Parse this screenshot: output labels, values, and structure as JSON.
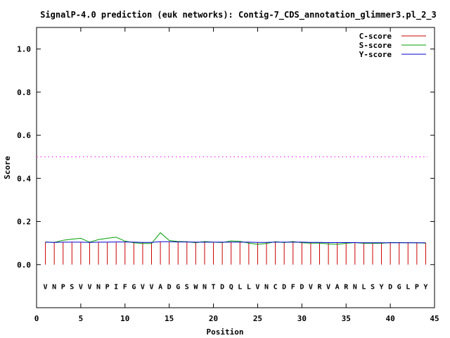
{
  "chart_data": {
    "type": "line",
    "title": "SignalP-4.0 prediction (euk networks): Contig-7_CDS_annotation_glimmer3.pl_2_3",
    "xlabel": "Position",
    "ylabel": "Score",
    "xlim": [
      0,
      45
    ],
    "ylim": [
      -0.2,
      1.1
    ],
    "x_ticks": [
      0,
      5,
      10,
      15,
      20,
      25,
      30,
      35,
      40,
      45
    ],
    "y_ticks": [
      0.0,
      0.2,
      0.4,
      0.6,
      0.8,
      1.0
    ],
    "y_tick_labels": [
      "0.0",
      "0.2",
      "0.4",
      "0.6",
      "0.8",
      "1.0"
    ],
    "threshold": 0.5,
    "sequence": [
      "V",
      "N",
      "P",
      "S",
      "V",
      "V",
      "N",
      "P",
      "I",
      "F",
      "G",
      "V",
      "V",
      "A",
      "D",
      "G",
      "S",
      "W",
      "N",
      "T",
      "D",
      "Q",
      "L",
      "L",
      "V",
      "N",
      "C",
      "D",
      "F",
      "D",
      "V",
      "R",
      "V",
      "A",
      "R",
      "N",
      "L",
      "S",
      "Y",
      "D",
      "G",
      "L",
      "P",
      "Y"
    ],
    "legend": [
      "C-score",
      "S-score",
      "Y-score"
    ],
    "legend_position": "top-right",
    "grid": false,
    "series": [
      {
        "name": "C-score",
        "color": "#cc0000",
        "style": "impulses",
        "x": [
          1,
          2,
          3,
          4,
          5,
          6,
          7,
          8,
          9,
          10,
          11,
          12,
          13,
          14,
          15,
          16,
          17,
          18,
          19,
          20,
          21,
          22,
          23,
          24,
          25,
          26,
          27,
          28,
          29,
          30,
          31,
          32,
          33,
          34,
          35,
          36,
          37,
          38,
          39,
          40,
          41,
          42,
          43,
          44
        ],
        "values": [
          0.104,
          0.103,
          0.103,
          0.103,
          0.103,
          0.103,
          0.103,
          0.103,
          0.103,
          0.104,
          0.104,
          0.103,
          0.104,
          0.105,
          0.105,
          0.104,
          0.104,
          0.104,
          0.104,
          0.104,
          0.104,
          0.104,
          0.104,
          0.104,
          0.104,
          0.104,
          0.104,
          0.104,
          0.104,
          0.104,
          0.103,
          0.103,
          0.103,
          0.102,
          0.102,
          0.102,
          0.101,
          0.101,
          0.101,
          0.101,
          0.101,
          0.101,
          0.101,
          0.101
        ]
      },
      {
        "name": "S-score",
        "color": "#00a000",
        "style": "line",
        "x": [
          1,
          2,
          3,
          4,
          5,
          6,
          7,
          8,
          9,
          10,
          11,
          12,
          13,
          14,
          15,
          16,
          17,
          18,
          19,
          20,
          21,
          22,
          23,
          24,
          25,
          26,
          27,
          28,
          29,
          30,
          31,
          32,
          33,
          34,
          35,
          36,
          37,
          38,
          39,
          40,
          41,
          42,
          43,
          44
        ],
        "values": [
          0.105,
          0.103,
          0.113,
          0.118,
          0.122,
          0.104,
          0.116,
          0.122,
          0.127,
          0.109,
          0.101,
          0.098,
          0.098,
          0.148,
          0.112,
          0.107,
          0.106,
          0.101,
          0.107,
          0.104,
          0.102,
          0.11,
          0.108,
          0.1,
          0.094,
          0.098,
          0.106,
          0.102,
          0.107,
          0.101,
          0.1,
          0.1,
          0.096,
          0.094,
          0.099,
          0.102,
          0.099,
          0.099,
          0.099,
          0.102,
          0.102,
          0.101,
          0.101,
          0.1
        ]
      },
      {
        "name": "Y-score",
        "color": "#0000cc",
        "style": "line",
        "x": [
          1,
          2,
          3,
          4,
          5,
          6,
          7,
          8,
          9,
          10,
          11,
          12,
          13,
          14,
          15,
          16,
          17,
          18,
          19,
          20,
          21,
          22,
          23,
          24,
          25,
          26,
          27,
          28,
          29,
          30,
          31,
          32,
          33,
          34,
          35,
          36,
          37,
          38,
          39,
          40,
          41,
          42,
          43,
          44
        ],
        "values": [
          0.104,
          0.103,
          0.104,
          0.104,
          0.104,
          0.103,
          0.104,
          0.104,
          0.105,
          0.105,
          0.104,
          0.103,
          0.103,
          0.106,
          0.106,
          0.105,
          0.105,
          0.104,
          0.104,
          0.104,
          0.104,
          0.104,
          0.104,
          0.104,
          0.103,
          0.103,
          0.104,
          0.104,
          0.104,
          0.104,
          0.103,
          0.103,
          0.102,
          0.102,
          0.102,
          0.102,
          0.101,
          0.101,
          0.101,
          0.101,
          0.101,
          0.101,
          0.101,
          0.101
        ]
      }
    ],
    "threshold_color": "#ff00ff"
  }
}
